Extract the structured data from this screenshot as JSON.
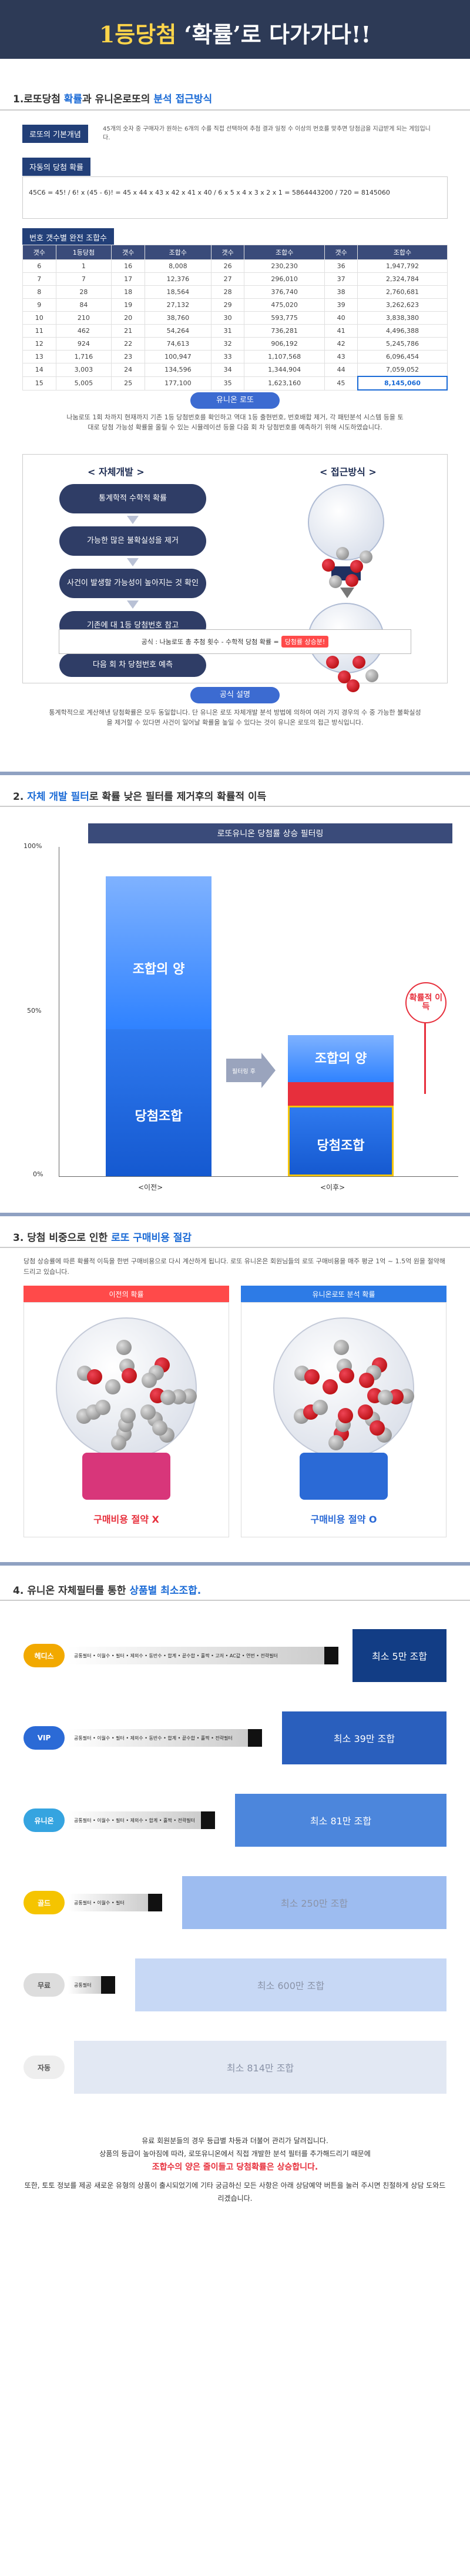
{
  "hero": {
    "title_num": "1등당첨",
    "title_rest": " ‘확률’로 다가가다!!"
  },
  "s1": {
    "title_a": "1.로또당첨 ",
    "title_b": "확률",
    "title_c": "과 유니온로또의 ",
    "title_d": "분석 접근방식",
    "concept_label": "로또의 기본개념",
    "concept_text": "45개의 숫자 중 구매자가 원하는 6개의 수를 직접 선택하여 추첨 결과 일정 수 이상의 번호를 맞추면 당첨금을 지급받게 되는 게임입니다.",
    "formula_label": "자동의 당첨 확률",
    "formula_text": "45C6 = 45! / 6! x (45 - 6)! = 45 x 44 x 43 x 42 x 41 x 40 / 6 x 5 x 4 x 3 x 2 x 1 = 5864443200 / 720 = 8145060",
    "table_label": "번호 갯수별 완전 조합수",
    "table_headers": [
      "갯수",
      "1등당첨",
      "갯수",
      "조합수",
      "갯수",
      "조합수",
      "갯수",
      "조합수"
    ],
    "rows": [
      [
        "6",
        "1",
        "16",
        "8,008",
        "26",
        "230,230",
        "36",
        "1,947,792"
      ],
      [
        "7",
        "7",
        "17",
        "12,376",
        "27",
        "296,010",
        "37",
        "2,324,784"
      ],
      [
        "8",
        "28",
        "18",
        "18,564",
        "28",
        "376,740",
        "38",
        "2,760,681"
      ],
      [
        "9",
        "84",
        "19",
        "27,132",
        "29",
        "475,020",
        "39",
        "3,262,623"
      ],
      [
        "10",
        "210",
        "20",
        "38,760",
        "30",
        "593,775",
        "40",
        "3,838,380"
      ],
      [
        "11",
        "462",
        "21",
        "54,264",
        "31",
        "736,281",
        "41",
        "4,496,388"
      ],
      [
        "12",
        "924",
        "22",
        "74,613",
        "32",
        "906,192",
        "42",
        "5,245,786"
      ],
      [
        "13",
        "1,716",
        "23",
        "100,947",
        "33",
        "1,107,568",
        "43",
        "6,096,454"
      ],
      [
        "14",
        "3,003",
        "24",
        "134,596",
        "34",
        "1,344,904",
        "44",
        "7,059,052"
      ],
      [
        "15",
        "5,005",
        "25",
        "177,100",
        "35",
        "1,623,160",
        "45",
        "8,145,060"
      ]
    ],
    "union_pill": "유니온 로또",
    "union_text": "나눔로또 1회 차까지 현재까지 기존 1등 당첨번호를 확인하고 역대 1등 출현번호, 번호배합 제거, 각 패턴분석 시스템 등을 토대로 당첨 가능성 확률을 올릴 수 있는 시뮬레이션 등을 다음 회 차 당첨번호를 예측하기 위해 시도하였습니다.",
    "left_head": "< 자체개발 >",
    "right_head": "< 접근방식 >",
    "flow": [
      "통계학적 수학적 확률",
      "가능한 많은 불확실성을 제거",
      "사건이 발생할 가능성이 높아지는 것 확인",
      "기존에 대 1등 당첨번호 참고",
      "다음 회 차 당첨번호 예측"
    ],
    "formula2_a": "공식 : 나눔로또 총 추첨 횟수 - 수학적 당첨 확률 = ",
    "formula2_b": "당첨률 상승분!",
    "formula2_sub1": "(일반 적용)",
    "formula2_sub2": "(일반 적용)",
    "desc_pill": "공식 설명",
    "desc_text": "통계학적으로 계산해낸 당첨확률은 모두 동일합니다. 단 유니온 로또 자체개발 분석 방법에 의하여 여러 가지 경우의 수 중 가능한 불확실성을 제거할 수 있다면 사건이 일어날 확률을 높일 수 있다는 것이 유니온 로또의 접근 방식입니다."
  },
  "s2": {
    "title_a": "2. ",
    "title_b": "자체 개발 필터",
    "title_c": "로 확률 낮은 필터를 제거후의 확률적 이득",
    "banner": "로또유니온 당첨률 상승 필터링",
    "y_top": "100%",
    "y_mid": "50%",
    "y_bot": "0%",
    "left_top": "조합의 양",
    "left_bottom": "당첨조합",
    "filter": "필터링 후",
    "right_top": "조합의 양",
    "right_bottom": "당첨조합",
    "gain": "확률적 이득",
    "x_left": "<이전>",
    "x_right": "<이후>"
  },
  "s3": {
    "title_a": "3. 당첨 비중으로 인한 ",
    "title_b": "로또 구매비용 절감",
    "desc": "당첨 상승률에 따른 확률적 이득을 한번 구매비용으로 다시 계산하게 됩니다. 로또 유니온은 회원님들의 로또 구매비용을 매주 평균 1억 ~ 1.5억 원을 절약해드리고 있습니다.",
    "left_head": "이전의 확률",
    "right_head": "유니온로또 분석 확률",
    "left_caption": "구매비용 절약 X",
    "right_caption": "구매비용 절약 O"
  },
  "s4": {
    "title_a": "4. 유니온 자체필터를 통한 ",
    "title_b": "상품별 최소조합.",
    "tiers": [
      {
        "badge": "헤디스",
        "bar": "공통필터 • 이월수 • 필터 • 제외수 • 동반수 • 합계 • 끝수합 • 홀짝 • 고저 • AC값 • 연번 • 전략필터",
        "box": "최소 5만 조합"
      },
      {
        "badge": "VIP",
        "bar": "공통필터 • 이월수 • 필터 • 제외수 • 동반수 • 합계 • 끝수합 • 홀짝 • 전략필터",
        "box": "최소 39만 조합"
      },
      {
        "badge": "유니온",
        "bar": "공통필터 • 이월수 • 필터 • 제외수 • 합계 • 홀짝 • 전략필터",
        "box": "최소 81만 조합"
      },
      {
        "badge": "골드",
        "bar": "공통필터 • 이월수 • 필터",
        "box": "최소 250만 조합"
      },
      {
        "badge": "무료",
        "bar": "공통필터",
        "box": "최소 600만 조합"
      },
      {
        "badge": "자동",
        "bar": "",
        "box": "최소 814만 조합"
      }
    ],
    "footer1": "유료 회원분들의 경우 등급별 차등과 더불어 관리가 달려집니다.",
    "footer2": "상품의 등급이 높아짐에 따라, 로또유니온에서 직접 개발한 분석 필터를 추가해드리기 때문에",
    "footer3": "조합수의 양은 줄이들고 당첨확률은 상승합니다.",
    "footer4": "또한, 토토 정보를 제공 새로운 유형의 상품이 출시되었기에 기타 궁금하신 모든 사항은 아래 상담예약 버튼을 눌러 주시면 친절하게 상담 도와드리겠습니다."
  }
}
